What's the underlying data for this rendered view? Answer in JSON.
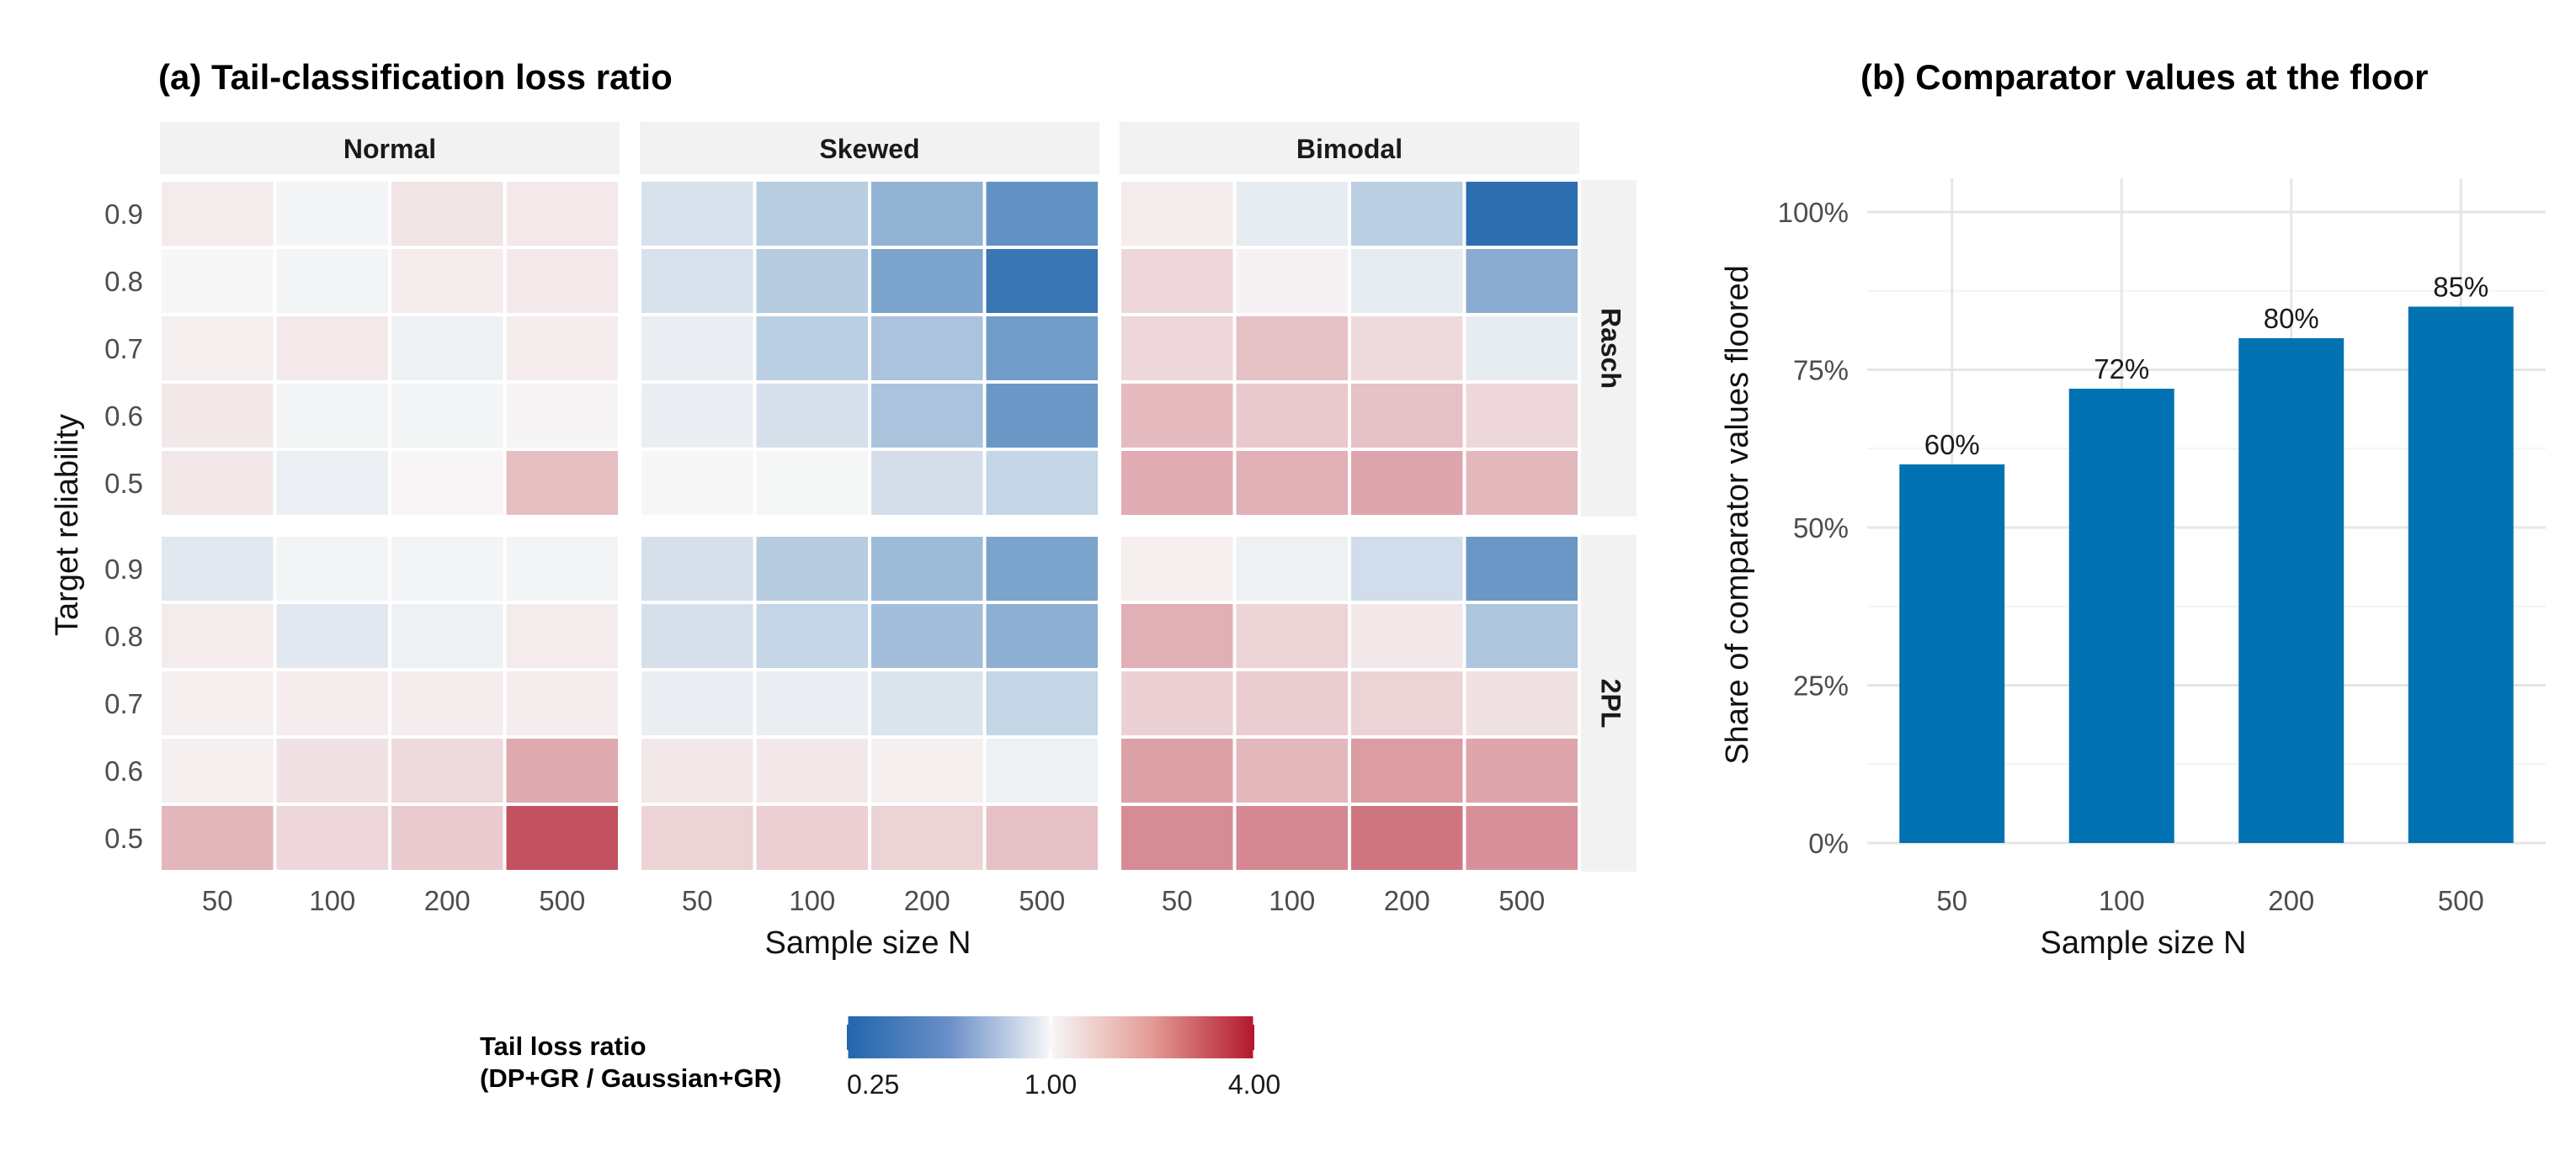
{
  "chart_data": [
    {
      "type": "heatmap",
      "title": "(a) Tail-classification loss ratio",
      "xlabel": "Sample size N",
      "ylabel": "Target reliability",
      "columns": [
        "Normal",
        "Skewed",
        "Bimodal"
      ],
      "rows": [
        "Rasch",
        "2PL"
      ],
      "x_categories": [
        "50",
        "100",
        "200",
        "500"
      ],
      "y_categories": [
        "0.9",
        "0.8",
        "0.7",
        "0.6",
        "0.5"
      ],
      "scale": "log",
      "cells": {
        "Rasch": {
          "Normal": [
            [
              1.08,
              0.98,
              1.12,
              1.09
            ],
            [
              1.0,
              0.97,
              1.07,
              1.09
            ],
            [
              1.05,
              1.09,
              0.94,
              1.07
            ],
            [
              1.1,
              0.97,
              0.97,
              1.02
            ],
            [
              1.1,
              0.93,
              1.01,
              1.42
            ]
          ],
          "Skewed": [
            [
              0.82,
              0.67,
              0.52,
              0.38
            ],
            [
              0.82,
              0.66,
              0.45,
              0.29
            ],
            [
              0.92,
              0.68,
              0.61,
              0.42
            ],
            [
              0.92,
              0.8,
              0.61,
              0.4
            ],
            [
              1.0,
              0.99,
              0.79,
              0.72
            ]
          ],
          "Bimodal": [
            [
              1.07,
              0.9,
              0.68,
              0.27
            ],
            [
              1.22,
              1.03,
              0.9,
              0.49
            ],
            [
              1.22,
              1.4,
              1.2,
              0.9
            ],
            [
              1.45,
              1.33,
              1.4,
              1.22
            ],
            [
              1.6,
              1.55,
              1.66,
              1.48
            ]
          ]
        },
        "2PL": {
          "Normal": [
            [
              0.87,
              0.97,
              0.97,
              0.97
            ],
            [
              1.08,
              0.87,
              0.94,
              1.08
            ],
            [
              1.05,
              1.07,
              1.07,
              1.07
            ],
            [
              1.05,
              1.14,
              1.2,
              1.62
            ],
            [
              1.5,
              1.22,
              1.32,
              2.8
            ]
          ],
          "Skewed": [
            [
              0.8,
              0.66,
              0.56,
              0.45
            ],
            [
              0.8,
              0.72,
              0.58,
              0.5
            ],
            [
              0.92,
              0.92,
              0.83,
              0.72
            ],
            [
              1.1,
              1.1,
              1.05,
              0.94
            ],
            [
              1.25,
              1.28,
              1.25,
              1.4
            ]
          ],
          "Bimodal": [
            [
              1.05,
              0.94,
              0.78,
              0.4
            ],
            [
              1.56,
              1.25,
              1.1,
              0.62
            ],
            [
              1.27,
              1.3,
              1.25,
              1.15
            ],
            [
              1.72,
              1.48,
              1.76,
              1.66
            ],
            [
              1.95,
              2.0,
              2.25,
              1.9
            ]
          ]
        }
      },
      "legend": {
        "title_line1": "Tail loss ratio",
        "title_line2": "(DP+GR / Gaussian+GR)",
        "position": "bottom",
        "ticks": [
          "0.25",
          "1.00",
          "4.00"
        ],
        "range": [
          0.25,
          4.0
        ],
        "low_color": "#2166ac",
        "mid_color": "#f7f7f7",
        "high_color": "#b2182b"
      }
    },
    {
      "type": "bar",
      "title": "(b) Comparator values at the floor",
      "xlabel": "Sample size N",
      "ylabel": "Share of comparator values floored",
      "categories": [
        "50",
        "100",
        "200",
        "500"
      ],
      "values": [
        60,
        72,
        80,
        85
      ],
      "value_labels": [
        "60%",
        "72%",
        "80%",
        "85%"
      ],
      "y_ticks": [
        "0%",
        "25%",
        "50%",
        "75%",
        "100%"
      ],
      "ylim": [
        0,
        100
      ],
      "grid": true,
      "bar_color": "#0072b2"
    }
  ]
}
